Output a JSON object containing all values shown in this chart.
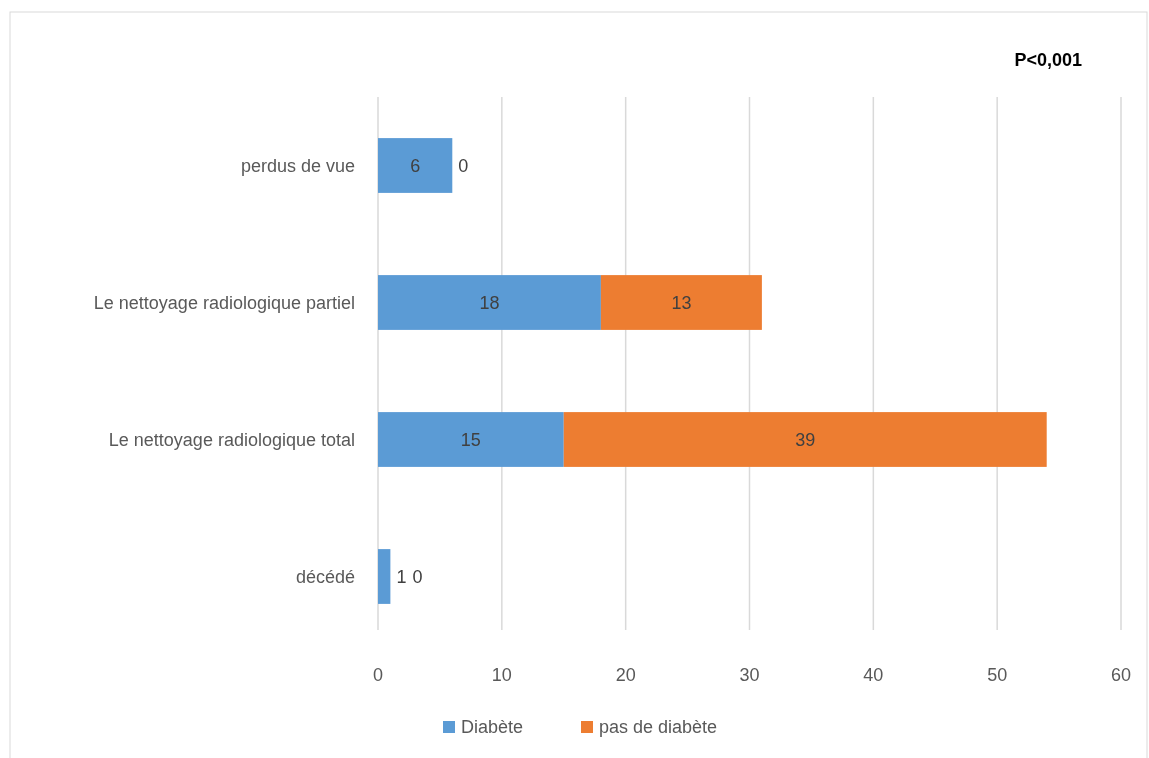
{
  "chart_data": {
    "type": "bar",
    "orientation": "horizontal",
    "stacked": true,
    "categories": [
      "perdus de vue",
      "Le nettoyage radiologique partiel",
      "Le nettoyage radiologique total",
      "décédé"
    ],
    "series": [
      {
        "name": "Diabète",
        "color": "#5b9bd5",
        "values": [
          6,
          18,
          15,
          1
        ]
      },
      {
        "name": "pas de diabète",
        "color": "#ed7d31",
        "values": [
          0,
          13,
          39,
          0
        ]
      }
    ],
    "xlim": [
      0,
      60
    ],
    "xticks": [
      0,
      10,
      20,
      30,
      40,
      50,
      60
    ],
    "grid": "x",
    "legend": "bottom",
    "data_labels": true,
    "annotations": [
      "P<0,001"
    ]
  }
}
